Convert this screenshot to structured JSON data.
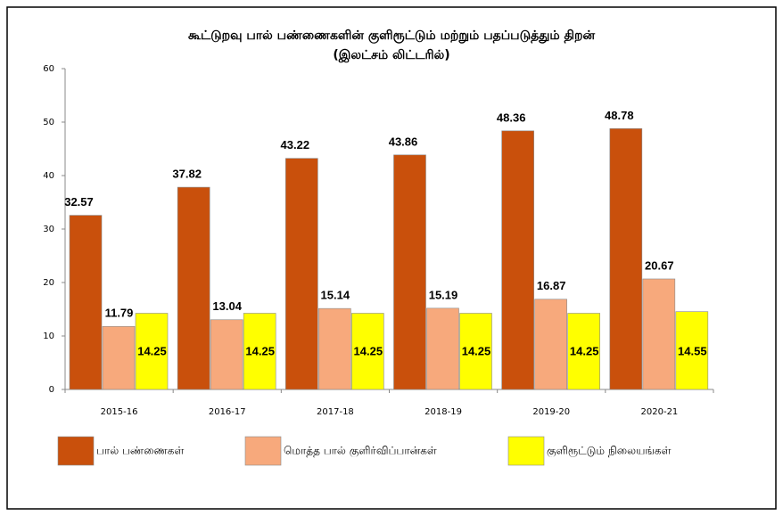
{
  "chart_data": {
    "type": "bar",
    "title": "கூட்டுறவு பால் பண்ணைகளின் குளிரூட்டும் மற்றும் பதப்படுத்தும் திறன்",
    "subtitle": "(இலட்சம் லிட்டரில்)",
    "categories": [
      "2015-16",
      "2016-17",
      "2017-18",
      "2018-19",
      "2019-20",
      "2020-21"
    ],
    "series": [
      {
        "name": "பால் பண்ணைகள்",
        "color": "#c9500c",
        "values": [
          32.57,
          37.82,
          43.22,
          43.86,
          48.36,
          48.78
        ]
      },
      {
        "name": "மொத்த பால் குளிர்விப்பான்கள்",
        "color": "#f7a97c",
        "values": [
          11.79,
          13.04,
          15.14,
          15.19,
          16.87,
          20.67
        ]
      },
      {
        "name": "குளிரூட்டும் நிலையங்கள்",
        "color": "#ffff00",
        "values": [
          14.25,
          14.25,
          14.25,
          14.25,
          14.25,
          14.55
        ]
      }
    ],
    "ylim": [
      0,
      60
    ],
    "yticks": [
      0,
      10,
      20,
      30,
      40,
      50,
      60
    ],
    "legend": "bottom"
  }
}
